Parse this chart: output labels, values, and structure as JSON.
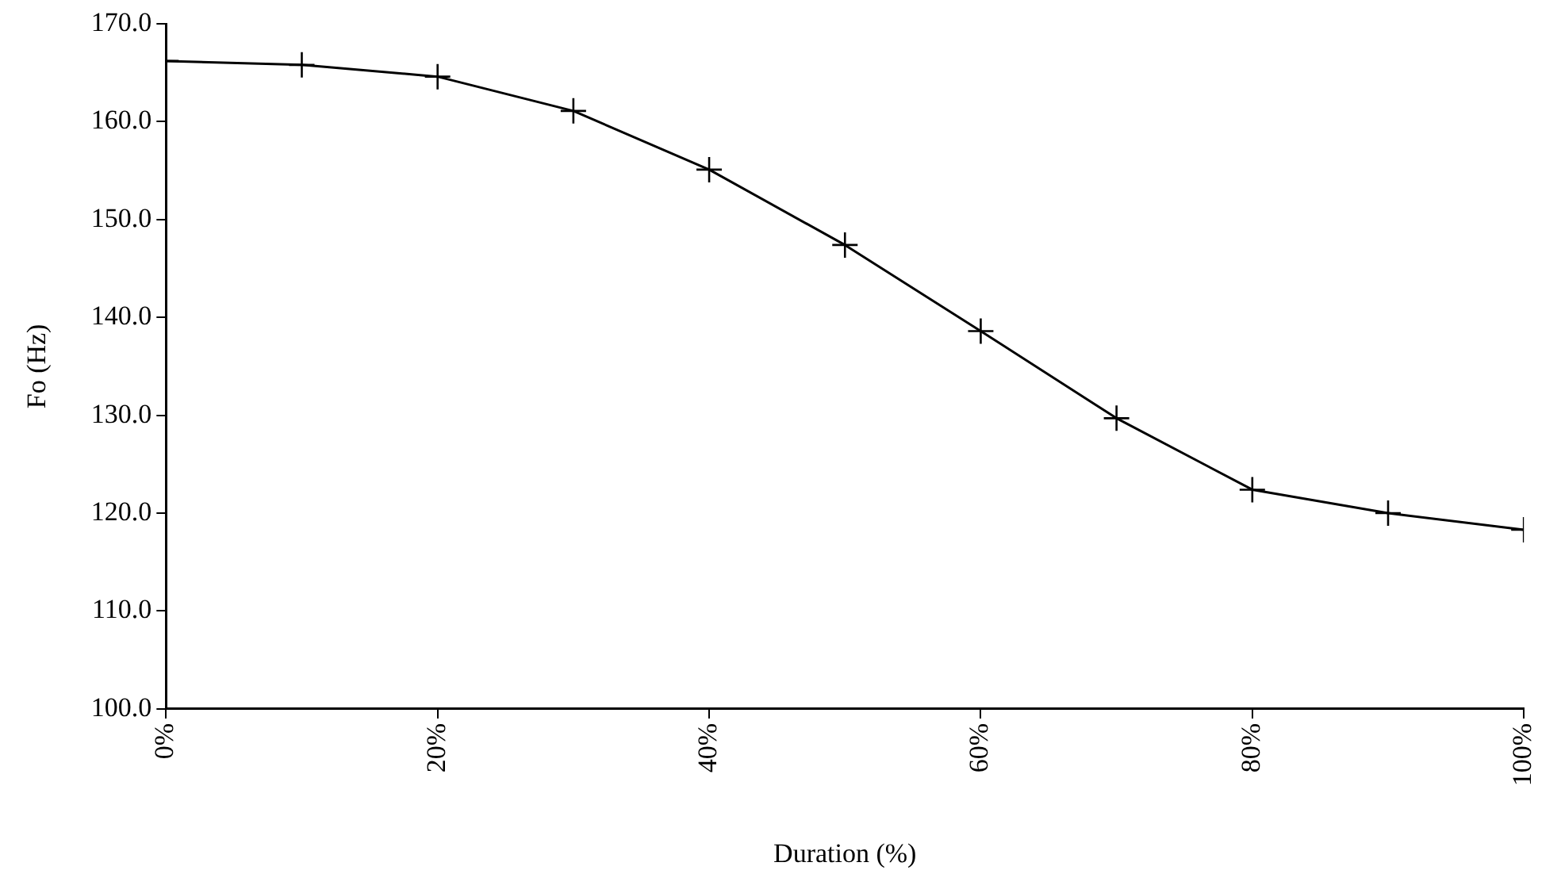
{
  "chart_data": {
    "type": "line",
    "xlabel": "Duration (%)",
    "ylabel": "Fo (Hz)",
    "x": [
      0,
      10,
      20,
      30,
      40,
      50,
      60,
      70,
      80,
      90,
      100
    ],
    "series": [
      {
        "color": "#000000",
        "values": [
          166.2,
          165.8,
          164.6,
          161.1,
          155.1,
          147.4,
          138.6,
          129.7,
          122.4,
          120.0,
          118.3
        ]
      }
    ],
    "xlim": [
      0,
      100
    ],
    "xticks": [
      {
        "value": 0,
        "label": "0%"
      },
      {
        "value": 20,
        "label": "20%"
      },
      {
        "value": 40,
        "label": "40%"
      },
      {
        "value": 60,
        "label": "60%"
      },
      {
        "value": 80,
        "label": "80%"
      },
      {
        "value": 100,
        "label": "100%"
      }
    ],
    "ylim": [
      100,
      170
    ],
    "yticks": [
      {
        "value": 100,
        "label": "100.0"
      },
      {
        "value": 110,
        "label": "110.0"
      },
      {
        "value": 120,
        "label": "120.0"
      },
      {
        "value": 130,
        "label": "130.0"
      },
      {
        "value": 140,
        "label": "140.0"
      },
      {
        "value": 150,
        "label": "150.0"
      },
      {
        "value": 160,
        "label": "160.0"
      },
      {
        "value": 170,
        "label": "170.0"
      }
    ],
    "grid": false,
    "legend": false,
    "marker": "cross",
    "line_style": "solid"
  }
}
